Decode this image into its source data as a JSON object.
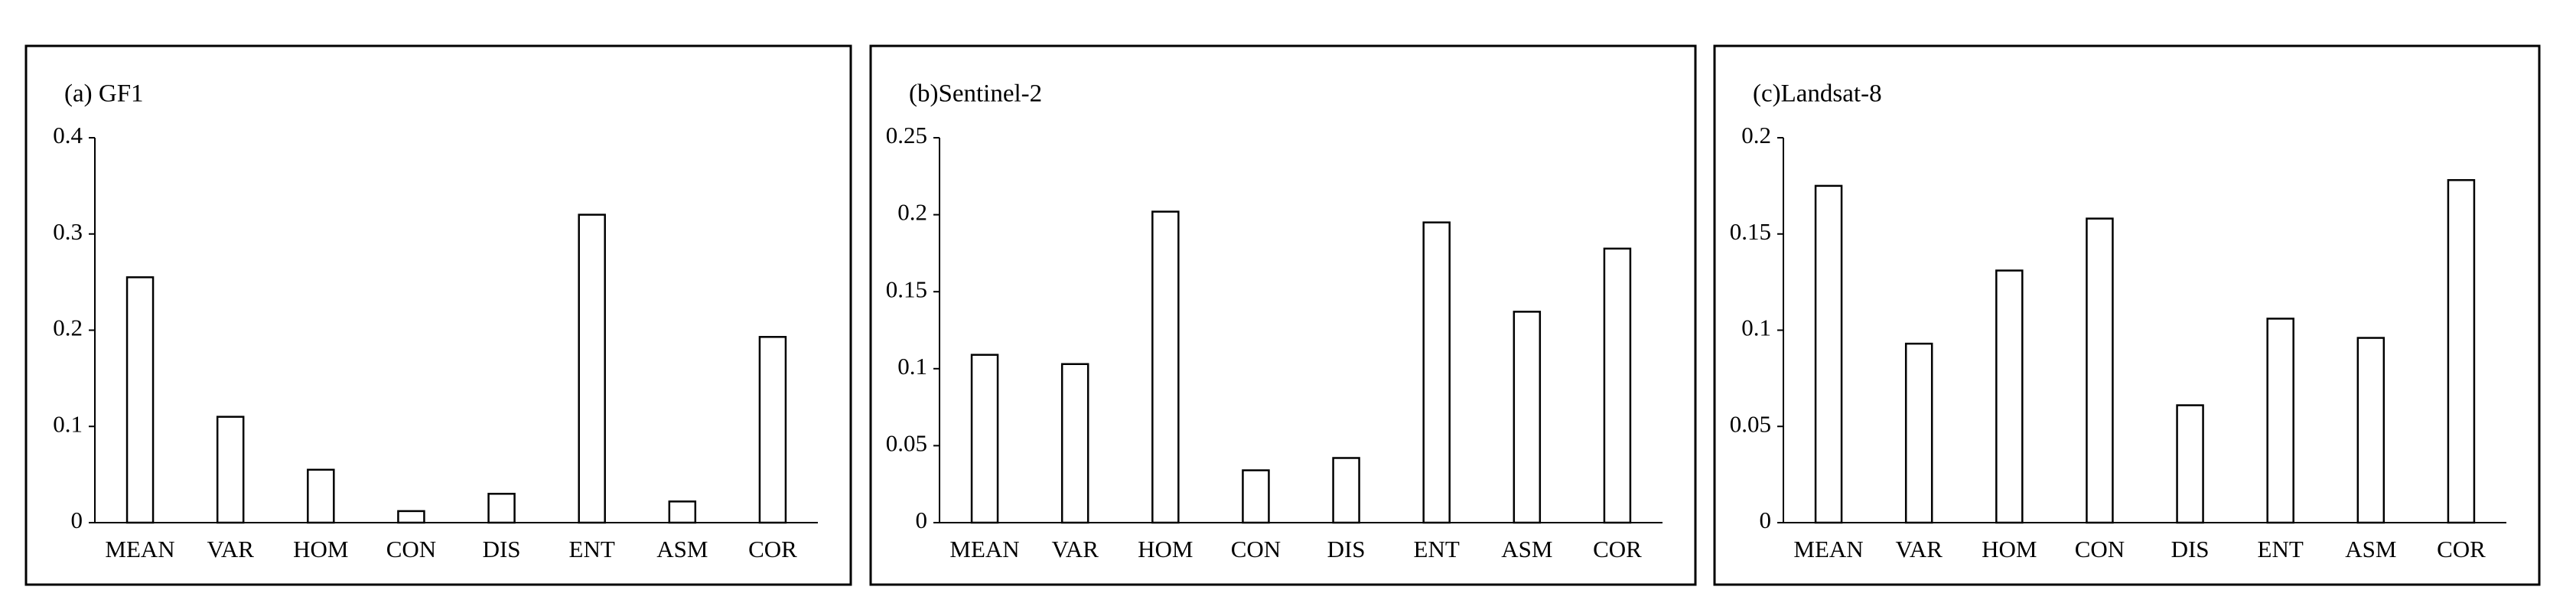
{
  "chart_data": [
    {
      "type": "bar",
      "title": "(a) GF1",
      "categories": [
        "MEAN",
        "VAR",
        "HOM",
        "CON",
        "DIS",
        "ENT",
        "ASM",
        "COR"
      ],
      "values": [
        0.255,
        0.11,
        0.055,
        0.012,
        0.03,
        0.32,
        0.022,
        0.193
      ],
      "color": "#ffffff",
      "ylim": [
        0,
        0.4
      ],
      "yticks": [
        0,
        0.1,
        0.2,
        0.3,
        0.4
      ]
    },
    {
      "type": "bar",
      "title": "(b)Sentinel-2",
      "categories": [
        "MEAN",
        "VAR",
        "HOM",
        "CON",
        "DIS",
        "ENT",
        "ASM",
        "COR"
      ],
      "values": [
        0.109,
        0.103,
        0.202,
        0.034,
        0.042,
        0.195,
        0.137,
        0.178
      ],
      "color": "#ffffff",
      "ylim": [
        0,
        0.25
      ],
      "yticks": [
        0,
        0.05,
        0.1,
        0.15,
        0.2,
        0.25
      ]
    },
    {
      "type": "bar",
      "title": "(c)Landsat-8",
      "categories": [
        "MEAN",
        "VAR",
        "HOM",
        "CON",
        "DIS",
        "ENT",
        "ASM",
        "COR"
      ],
      "values": [
        0.175,
        0.093,
        0.131,
        0.158,
        0.061,
        0.106,
        0.096,
        0.178
      ],
      "color": "#ffffff",
      "ylim": [
        0,
        0.2
      ],
      "yticks": [
        0,
        0.05,
        0.1,
        0.15,
        0.2
      ]
    }
  ]
}
